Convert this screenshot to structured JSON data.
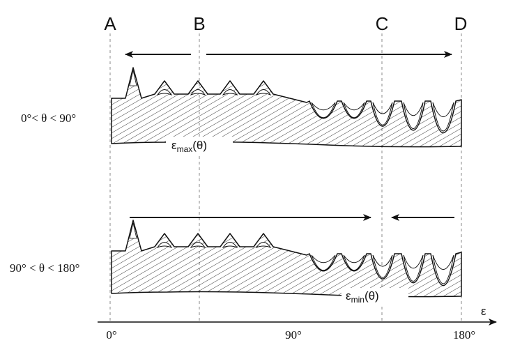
{
  "point_labels": {
    "a": "A",
    "b": "B",
    "c": "C",
    "d": "D"
  },
  "rows": [
    {
      "condition": "0°< θ < 90°",
      "curve_symbol": "ε",
      "curve_sub": "max",
      "curve_arg": "(θ)",
      "arrows": "outward from B to A and to D"
    },
    {
      "condition": "90° < θ < 180°",
      "curve_symbol": "ε",
      "curve_sub": "min",
      "curve_arg": "(θ)",
      "arrows": "inward toward C from left and right"
    }
  ],
  "axis": {
    "label": "ε",
    "ticks": [
      "0°",
      "90°",
      "180°"
    ]
  },
  "colors": {
    "ink": "#111111",
    "dashed": "#888888",
    "background": "#ffffff"
  }
}
